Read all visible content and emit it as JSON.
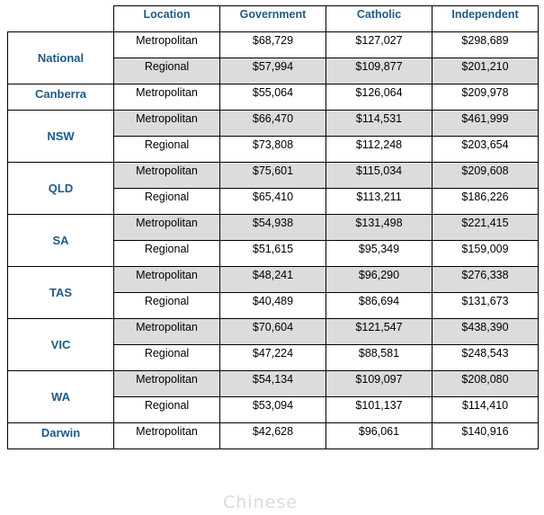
{
  "table": {
    "headers": [
      "Location",
      "Government",
      "Catholic",
      "Independent"
    ],
    "groups": [
      {
        "name": "National",
        "rows": [
          {
            "location": "Metropolitan",
            "government": "$68,729",
            "catholic": "$127,027",
            "independent": "$298,689",
            "shaded": false
          },
          {
            "location": "Regional",
            "government": "$57,994",
            "catholic": "$109,877",
            "independent": "$201,210",
            "shaded": true
          }
        ]
      },
      {
        "name": "Canberra",
        "rows": [
          {
            "location": "Metropolitan",
            "government": "$55,064",
            "catholic": "$126,064",
            "independent": "$209,978",
            "shaded": false
          }
        ]
      },
      {
        "name": "NSW",
        "rows": [
          {
            "location": "Metropolitan",
            "government": "$66,470",
            "catholic": "$114,531",
            "independent": "$461,999",
            "shaded": true
          },
          {
            "location": "Regional",
            "government": "$73,808",
            "catholic": "$112,248",
            "independent": "$203,654",
            "shaded": false
          }
        ]
      },
      {
        "name": "QLD",
        "rows": [
          {
            "location": "Metropolitan",
            "government": "$75,601",
            "catholic": "$115,034",
            "independent": "$209,608",
            "shaded": true
          },
          {
            "location": "Regional",
            "government": "$65,410",
            "catholic": "$113,211",
            "independent": "$186,226",
            "shaded": false
          }
        ]
      },
      {
        "name": "SA",
        "rows": [
          {
            "location": "Metropolitan",
            "government": "$54,938",
            "catholic": "$131,498",
            "independent": "$221,415",
            "shaded": true
          },
          {
            "location": "Regional",
            "government": "$51,615",
            "catholic": "$95,349",
            "independent": "$159,009",
            "shaded": false
          }
        ]
      },
      {
        "name": "TAS",
        "rows": [
          {
            "location": "Metropolitan",
            "government": "$48,241",
            "catholic": "$96,290",
            "independent": "$276,338",
            "shaded": true
          },
          {
            "location": "Regional",
            "government": "$40,489",
            "catholic": "$86,694",
            "independent": "$131,673",
            "shaded": false
          }
        ]
      },
      {
        "name": "VIC",
        "rows": [
          {
            "location": "Metropolitan",
            "government": "$70,604",
            "catholic": "$121,547",
            "independent": "$438,390",
            "shaded": true
          },
          {
            "location": "Regional",
            "government": "$47,224",
            "catholic": "$88,581",
            "independent": "$248,543",
            "shaded": false
          }
        ]
      },
      {
        "name": "WA",
        "rows": [
          {
            "location": "Metropolitan",
            "government": "$54,134",
            "catholic": "$109,097",
            "independent": "$208,080",
            "shaded": true
          },
          {
            "location": "Regional",
            "government": "$53,094",
            "catholic": "$101,137",
            "independent": "$114,410",
            "shaded": false
          }
        ]
      },
      {
        "name": "Darwin",
        "rows": [
          {
            "location": "Metropolitan",
            "government": "$42,628",
            "catholic": "$96,061",
            "independent": "$140,916",
            "shaded": false
          }
        ]
      }
    ]
  },
  "watermark": "Chinese"
}
